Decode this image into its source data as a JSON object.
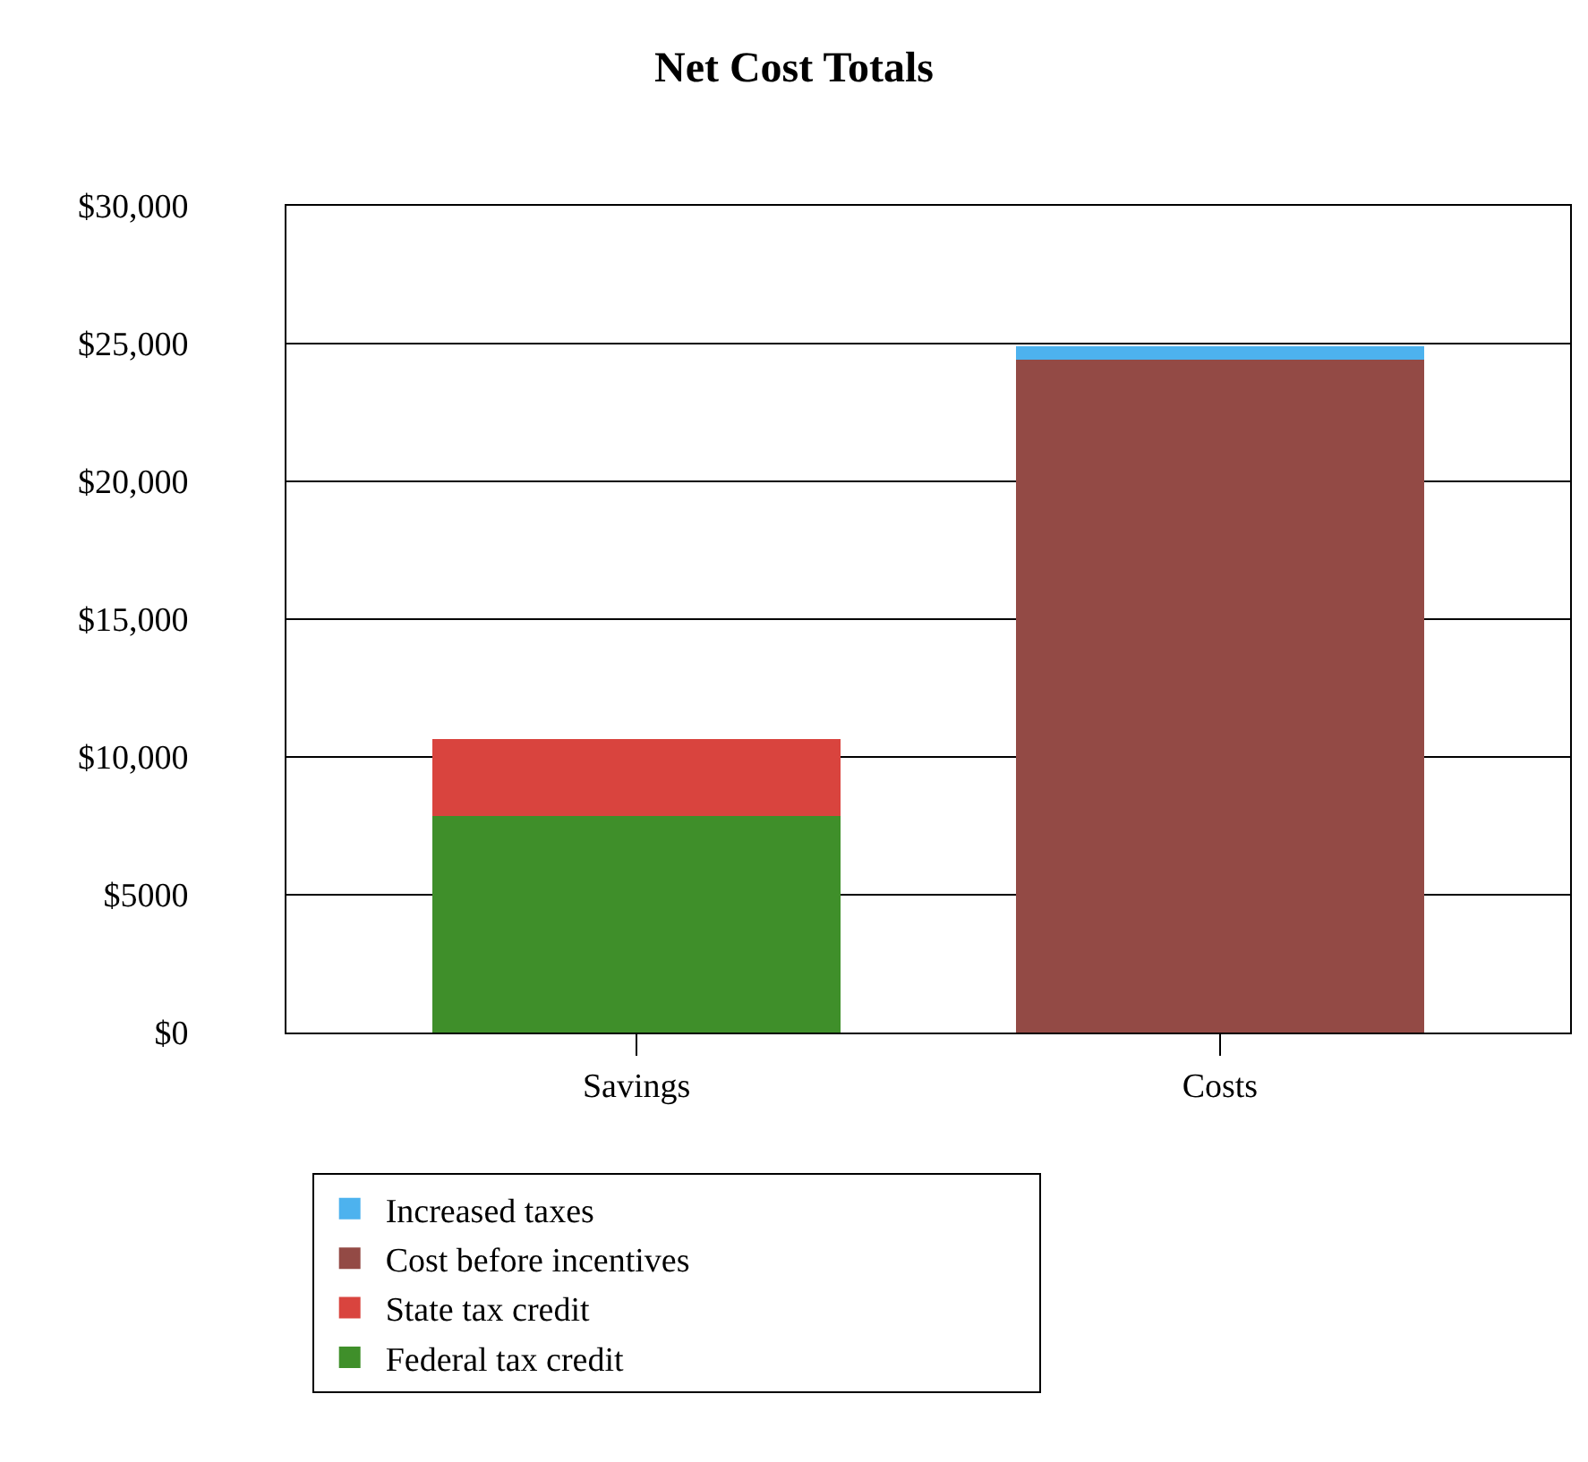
{
  "chart_data": {
    "type": "bar",
    "title": "Net Cost Totals",
    "categories": [
      "Savings",
      "Costs"
    ],
    "stacked": true,
    "series": [
      {
        "name": "Federal tax credit",
        "color": "#3f8f2a",
        "values": [
          7850,
          null
        ]
      },
      {
        "name": "State tax credit",
        "color": "#d9443e",
        "values": [
          2800,
          null
        ]
      },
      {
        "name": "Cost before incentives",
        "color": "#934a45",
        "values": [
          null,
          24400
        ]
      },
      {
        "name": "Increased taxes",
        "color": "#4db2ee",
        "values": [
          null,
          500
        ]
      }
    ],
    "ylim": [
      0,
      30000
    ],
    "yticks": [
      {
        "value": 0,
        "label": "$0"
      },
      {
        "value": 5000,
        "label": "$5000"
      },
      {
        "value": 10000,
        "label": "$10,000"
      },
      {
        "value": 15000,
        "label": "$15,000"
      },
      {
        "value": 20000,
        "label": "$20,000"
      },
      {
        "value": 25000,
        "label": "$25,000"
      },
      {
        "value": 30000,
        "label": "$30,000"
      }
    ],
    "grid": "y",
    "legend": "bottom"
  }
}
